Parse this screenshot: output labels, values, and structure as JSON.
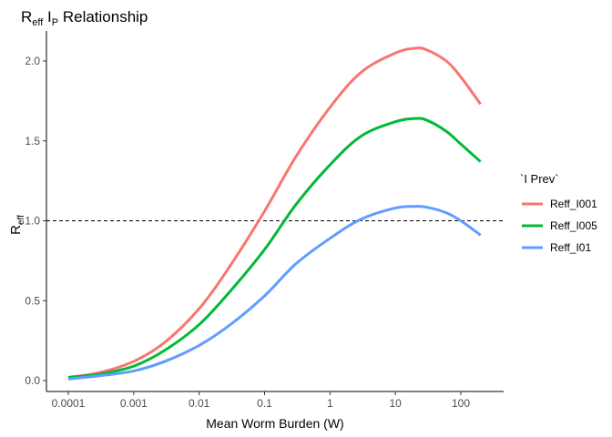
{
  "chart_data": {
    "type": "line",
    "title": {
      "parts": [
        {
          "text": "R",
          "sub": "eff"
        },
        {
          "text": " I",
          "sub": "P"
        },
        {
          "text": " Relationship",
          "sub": ""
        }
      ]
    },
    "xlabel": "Mean Worm Burden (W)",
    "ylabel": {
      "text": "R",
      "sub": "eff"
    },
    "x_scale": "log10",
    "xlim": [
      0.0001,
      200
    ],
    "ylim": [
      0,
      2.0
    ],
    "x_ticks": [
      0.0001,
      0.001,
      0.01,
      0.1,
      1,
      10,
      100
    ],
    "x_tick_labels": [
      "0.0001",
      "0.001",
      "0.01",
      "0.1",
      "1",
      "10",
      "100"
    ],
    "y_ticks": [
      0,
      0.5,
      1.0,
      1.5,
      2.0
    ],
    "y_tick_labels": [
      "0.0",
      "0.5",
      "1.0",
      "1.5",
      "2.0"
    ],
    "grid": false,
    "reference_line": {
      "y": 1.0,
      "style": "dashed",
      "color": "#000000"
    },
    "legend": {
      "title": "`I Prev`",
      "placement": "right"
    },
    "series": [
      {
        "name": "Reff_I001",
        "color": "#F8766D",
        "x": [
          0.0001,
          0.0003,
          0.001,
          0.003,
          0.01,
          0.03,
          0.1,
          0.3,
          1,
          3,
          10,
          20,
          30,
          60,
          100,
          200
        ],
        "y": [
          0.02,
          0.05,
          0.12,
          0.24,
          0.45,
          0.72,
          1.06,
          1.4,
          1.71,
          1.93,
          2.05,
          2.08,
          2.07,
          2.0,
          1.9,
          1.73
        ]
      },
      {
        "name": "Reff_I005",
        "color": "#00BA38",
        "x": [
          0.0001,
          0.0003,
          0.001,
          0.003,
          0.01,
          0.03,
          0.1,
          0.3,
          1,
          3,
          10,
          20,
          30,
          60,
          100,
          200
        ],
        "y": [
          0.02,
          0.04,
          0.09,
          0.19,
          0.35,
          0.56,
          0.82,
          1.1,
          1.35,
          1.53,
          1.62,
          1.64,
          1.63,
          1.56,
          1.48,
          1.37
        ]
      },
      {
        "name": "Reff_I01",
        "color": "#619CFF",
        "x": [
          0.0001,
          0.0003,
          0.001,
          0.003,
          0.01,
          0.03,
          0.1,
          0.3,
          1,
          3,
          10,
          20,
          30,
          60,
          100,
          200
        ],
        "y": [
          0.01,
          0.03,
          0.06,
          0.12,
          0.22,
          0.35,
          0.53,
          0.73,
          0.89,
          1.01,
          1.08,
          1.09,
          1.085,
          1.05,
          1.0,
          0.91
        ]
      }
    ]
  }
}
